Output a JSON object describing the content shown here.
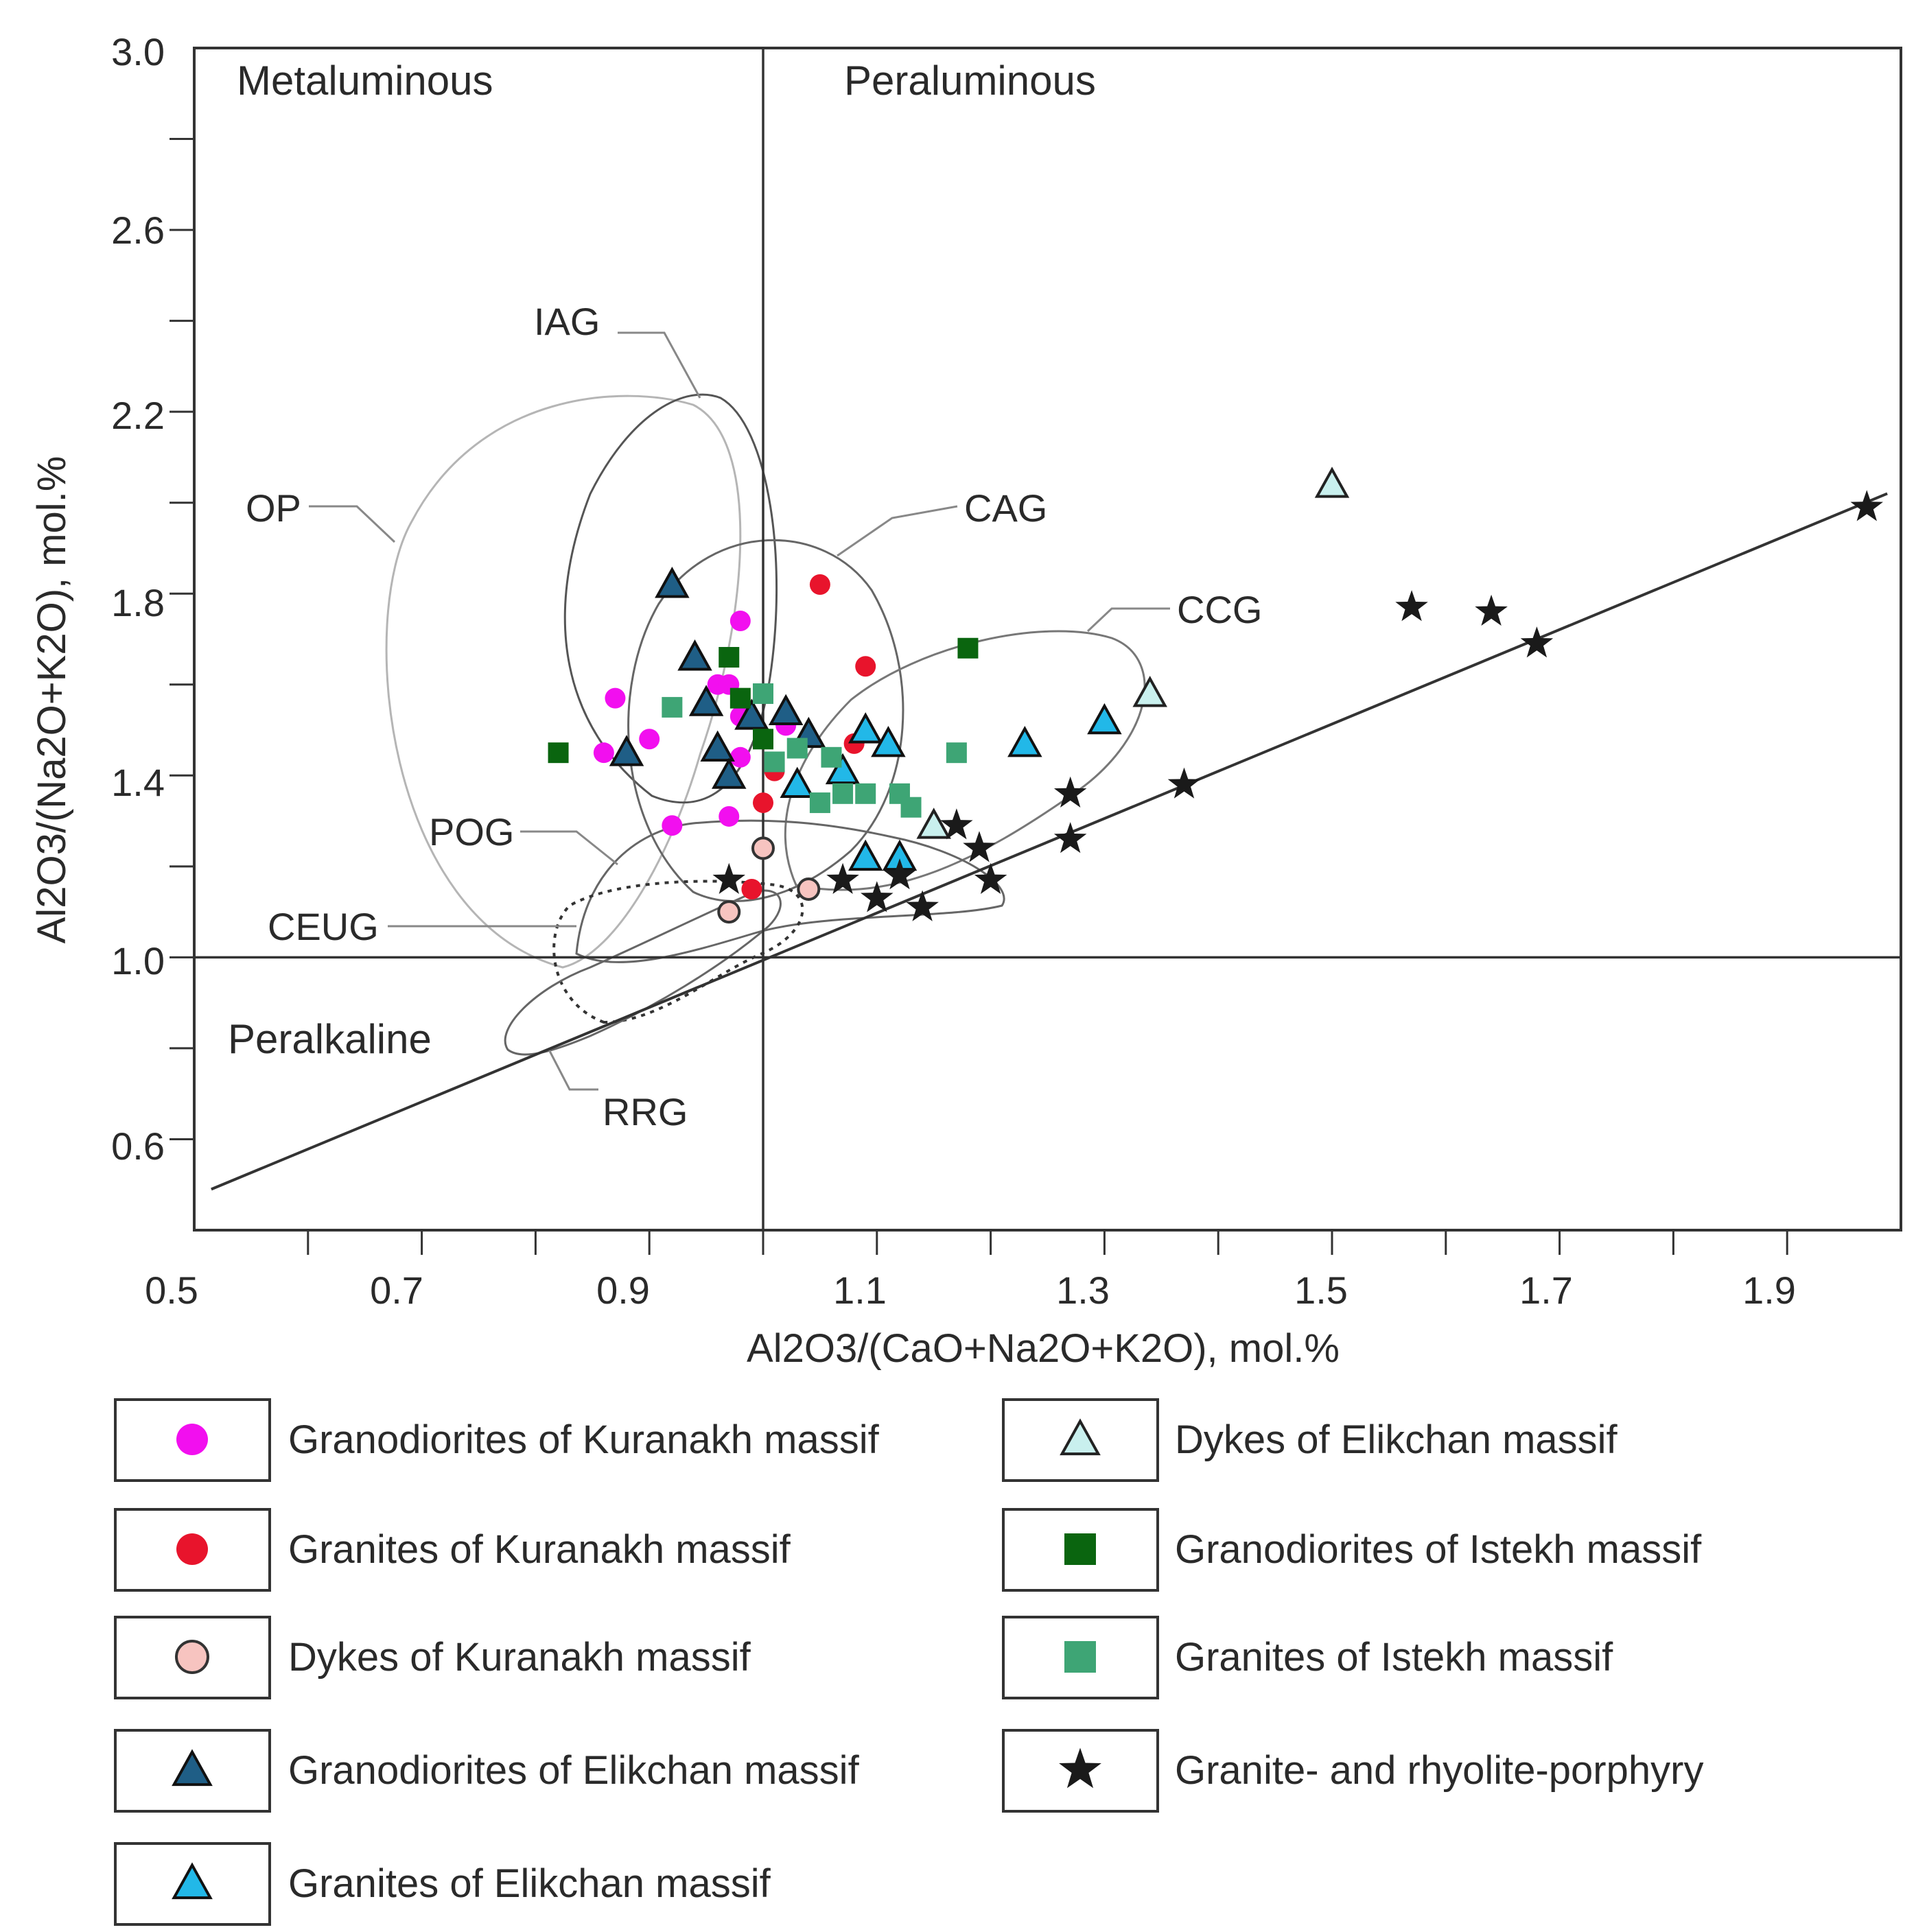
{
  "chart_data": {
    "type": "scatter",
    "title": "",
    "xlabel": "Al2O3/(CaO+Na2O+K2O), mol.%",
    "ylabel": "Al2O3/(Na2O+K2O), mol.%",
    "xlim": [
      0.5,
      2.0
    ],
    "ylim": [
      0.4,
      3.0
    ],
    "x_ticks": [
      "0.5",
      "0.7",
      "0.9",
      "1.1",
      "1.3",
      "1.5",
      "1.7",
      "1.9"
    ],
    "y_ticks": [
      "0.6",
      "1.0",
      "1.4",
      "1.8",
      "2.2",
      "2.6",
      "3.0"
    ],
    "regions": [
      "Metaluminous",
      "Peraluminous",
      "Peralkaline"
    ],
    "fields": [
      "IAG",
      "CAG",
      "CCG",
      "OP",
      "POG",
      "CEUG",
      "RRG"
    ],
    "reference_lines": [
      {
        "name": "ACNK = 1",
        "x": [
          1.0,
          1.0
        ],
        "y": [
          0.4,
          3.0
        ]
      },
      {
        "name": "ANK = 1",
        "x": [
          0.5,
          2.0
        ],
        "y": [
          1.0,
          1.0
        ]
      },
      {
        "name": "ANK = ACNK",
        "x": [
          0.515,
          1.988
        ],
        "y": [
          0.49,
          2.02
        ]
      }
    ],
    "series": [
      {
        "name": "Granodiorites of Kuranakh massif",
        "marker": "circle",
        "color": "#f20fef",
        "stroke": "none",
        "points": [
          [
            0.98,
            1.74
          ],
          [
            0.96,
            1.6
          ],
          [
            0.97,
            1.6
          ],
          [
            0.98,
            1.53
          ],
          [
            0.87,
            1.57
          ],
          [
            0.9,
            1.48
          ],
          [
            0.86,
            1.45
          ],
          [
            0.98,
            1.44
          ],
          [
            0.92,
            1.29
          ],
          [
            0.97,
            1.31
          ],
          [
            1.02,
            1.51
          ]
        ]
      },
      {
        "name": "Granites of Kuranakh massif",
        "marker": "circle",
        "color": "#e8142c",
        "stroke": "none",
        "points": [
          [
            1.05,
            1.82
          ],
          [
            1.09,
            1.64
          ],
          [
            1.08,
            1.47
          ],
          [
            1.01,
            1.41
          ],
          [
            1.0,
            1.34
          ],
          [
            0.99,
            1.15
          ]
        ]
      },
      {
        "name": "Dykes of Kuranakh massif",
        "marker": "circle",
        "color": "#f7c4c0",
        "stroke": "#333333",
        "points": [
          [
            1.0,
            1.24
          ],
          [
            1.04,
            1.15
          ],
          [
            0.97,
            1.1
          ]
        ]
      },
      {
        "name": "Granodiorites of Elikchan massif",
        "marker": "triangle",
        "color": "#1f5e86",
        "stroke": "#111111",
        "points": [
          [
            0.92,
            1.82
          ],
          [
            0.94,
            1.66
          ],
          [
            0.95,
            1.56
          ],
          [
            0.99,
            1.53
          ],
          [
            0.96,
            1.46
          ],
          [
            0.88,
            1.45
          ],
          [
            0.97,
            1.4
          ],
          [
            1.02,
            1.54
          ],
          [
            1.04,
            1.49
          ]
        ]
      },
      {
        "name": "Granites of Elikchan massif",
        "marker": "triangle",
        "color": "#22b8e8",
        "stroke": "#111111",
        "points": [
          [
            1.09,
            1.5
          ],
          [
            1.11,
            1.47
          ],
          [
            1.07,
            1.41
          ],
          [
            1.03,
            1.38
          ],
          [
            1.23,
            1.47
          ],
          [
            1.3,
            1.52
          ],
          [
            1.09,
            1.22
          ],
          [
            1.12,
            1.22
          ]
        ]
      },
      {
        "name": "Dykes of Elikchan massif",
        "marker": "triangle",
        "color": "#c9f0ee",
        "stroke": "#222222",
        "points": [
          [
            1.5,
            2.04
          ],
          [
            1.34,
            1.58
          ],
          [
            1.15,
            1.29
          ]
        ]
      },
      {
        "name": "Granodiorites of Istekh massif",
        "marker": "square",
        "color": "#0a650f",
        "stroke": "none",
        "points": [
          [
            0.82,
            1.45
          ],
          [
            0.97,
            1.66
          ],
          [
            0.98,
            1.57
          ],
          [
            1.0,
            1.48
          ],
          [
            1.18,
            1.68
          ]
        ]
      },
      {
        "name": "Granites of Istekh massif",
        "marker": "square",
        "color": "#3ea575",
        "stroke": "none",
        "points": [
          [
            0.92,
            1.55
          ],
          [
            1.0,
            1.58
          ],
          [
            1.01,
            1.43
          ],
          [
            1.03,
            1.46
          ],
          [
            1.06,
            1.44
          ],
          [
            1.05,
            1.34
          ],
          [
            1.07,
            1.36
          ],
          [
            1.09,
            1.36
          ],
          [
            1.12,
            1.36
          ],
          [
            1.13,
            1.33
          ],
          [
            1.17,
            1.45
          ]
        ]
      },
      {
        "name": "Granite- and rhyolite-porphyry",
        "marker": "star",
        "color": "#1a1a1a",
        "stroke": "none",
        "points": [
          [
            1.97,
            1.99
          ],
          [
            1.57,
            1.77
          ],
          [
            1.64,
            1.76
          ],
          [
            1.68,
            1.69
          ],
          [
            1.27,
            1.36
          ],
          [
            1.37,
            1.38
          ],
          [
            1.27,
            1.26
          ],
          [
            1.17,
            1.29
          ],
          [
            1.19,
            1.24
          ],
          [
            1.2,
            1.17
          ],
          [
            1.14,
            1.11
          ],
          [
            1.12,
            1.18
          ],
          [
            1.1,
            1.13
          ],
          [
            1.07,
            1.17
          ],
          [
            0.97,
            1.17
          ]
        ]
      }
    ]
  }
}
